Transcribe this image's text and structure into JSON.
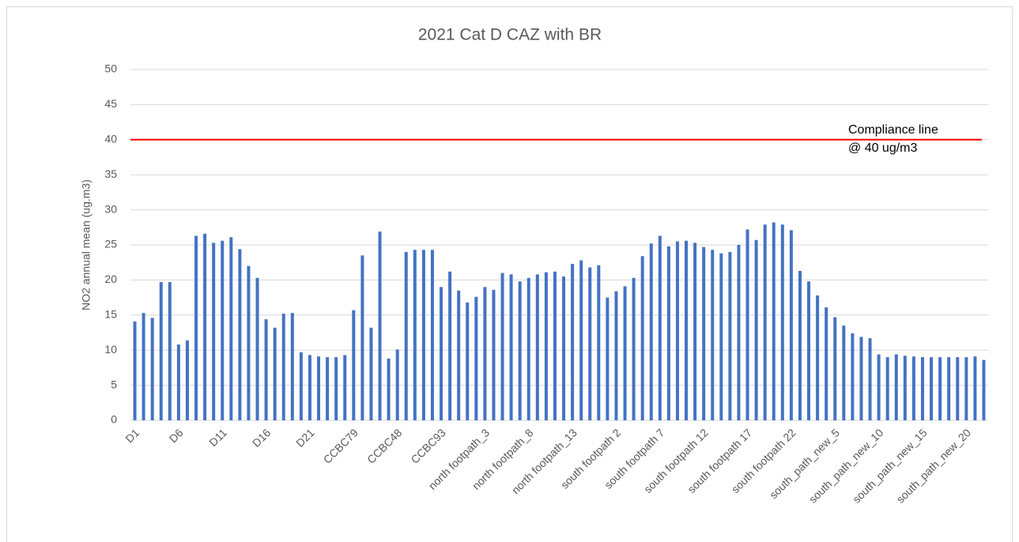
{
  "chart_data": {
    "type": "bar",
    "title": "2021 Cat D CAZ with BR",
    "y_label": "NO2 annual mean (ug.m3)",
    "categories": [
      "D1",
      null,
      null,
      null,
      null,
      "D6",
      null,
      null,
      null,
      null,
      "D11",
      null,
      null,
      null,
      null,
      "D16",
      null,
      null,
      null,
      null,
      "D21",
      null,
      null,
      null,
      null,
      "CCBC79",
      null,
      null,
      null,
      null,
      "CCBC48",
      null,
      null,
      null,
      null,
      "CCBC93",
      null,
      null,
      null,
      null,
      "north footpath_3",
      null,
      null,
      null,
      null,
      "north footpath_8",
      null,
      null,
      null,
      null,
      "north footpath_13",
      null,
      null,
      null,
      null,
      "south footpath 2",
      null,
      null,
      null,
      null,
      "south footpath 7",
      null,
      null,
      null,
      null,
      "south footpath 12",
      null,
      null,
      null,
      null,
      "south footpath 17",
      null,
      null,
      null,
      null,
      "south footpath 22",
      null,
      null,
      null,
      null,
      "south_path_new_5",
      null,
      null,
      null,
      null,
      "south_path_new_10",
      null,
      null,
      null,
      null,
      "south_path_new_15",
      null,
      null,
      null,
      null,
      "south_path_new_20",
      null,
      null
    ],
    "values": [
      14.1,
      15.3,
      14.6,
      19.7,
      19.7,
      10.8,
      11.4,
      26.3,
      26.6,
      25.3,
      25.6,
      26.1,
      24.4,
      22.0,
      20.3,
      14.4,
      13.2,
      15.2,
      15.3,
      9.7,
      9.3,
      9.1,
      9.0,
      9.0,
      9.3,
      15.7,
      23.5,
      13.2,
      26.9,
      8.8,
      10.1,
      24.0,
      24.3,
      24.3,
      24.3,
      19.0,
      21.2,
      18.5,
      16.8,
      17.6,
      19.0,
      18.6,
      21.0,
      20.8,
      19.8,
      20.3,
      20.8,
      21.1,
      21.2,
      20.5,
      22.3,
      22.8,
      21.8,
      22.1,
      17.5,
      18.4,
      19.1,
      20.3,
      23.4,
      25.2,
      26.3,
      24.8,
      25.5,
      25.6,
      25.3,
      24.7,
      24.3,
      23.8,
      24.0,
      25.0,
      27.2,
      25.7,
      27.9,
      28.2,
      27.9,
      27.1,
      21.3,
      19.8,
      17.8,
      16.1,
      14.7,
      13.5,
      12.4,
      11.9,
      11.7,
      9.4,
      9.0,
      9.4,
      9.2,
      9.1,
      9.0,
      9.0,
      9.0,
      9.0,
      9.0,
      9.0,
      9.1,
      8.6
    ],
    "color": "#4472c4",
    "ylim": [
      0,
      50
    ],
    "yticks": [
      0,
      5,
      10,
      15,
      20,
      25,
      30,
      35,
      40,
      45,
      50
    ],
    "grid": true,
    "annotation": {
      "value": 40,
      "color": "#ff0000",
      "lines": [
        "Compliance line",
        "@ 40 ug/m3"
      ]
    }
  }
}
